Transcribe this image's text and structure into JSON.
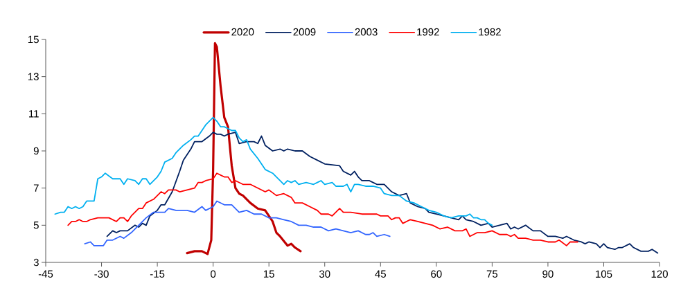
{
  "chart_data": {
    "type": "line",
    "xlim": [
      -45,
      120
    ],
    "ylim": [
      3,
      15
    ],
    "xticks": [
      -45,
      -30,
      -15,
      0,
      15,
      30,
      45,
      60,
      75,
      90,
      105,
      120
    ],
    "yticks": [
      3,
      5,
      7,
      9,
      11,
      13,
      15
    ],
    "grid": false,
    "legend": "top",
    "marker": "none",
    "line_style": "solid",
    "series": [
      {
        "name": "2020",
        "color": "#c00000",
        "x": [
          -7,
          -5,
          -3,
          -1.5,
          -0.5,
          0,
          0.5,
          1,
          2,
          3,
          4,
          5,
          6,
          7,
          8,
          10,
          12,
          14,
          15,
          16,
          17,
          18,
          20,
          21,
          22,
          23.5
        ],
        "values": [
          3.5,
          3.6,
          3.6,
          3.45,
          4.2,
          8,
          14.8,
          14.6,
          12.5,
          10.8,
          10.3,
          8.2,
          7.0,
          6.7,
          6.6,
          6.2,
          5.9,
          5.8,
          5.5,
          5.2,
          4.6,
          4.4,
          3.9,
          4.0,
          3.8,
          3.6
        ]
      },
      {
        "name": "2009",
        "color": "#002060",
        "x": [
          -28.5,
          -27,
          -26,
          -25,
          -23,
          -21,
          -20,
          -19,
          -18,
          -17,
          -15,
          -14,
          -13,
          -11,
          -9,
          -8,
          -6,
          -5,
          -3,
          -1,
          0,
          1,
          2,
          3,
          4,
          6,
          7,
          9,
          11,
          12,
          13,
          14,
          16,
          18,
          19,
          20,
          22,
          24,
          26,
          28,
          30,
          34,
          35,
          36,
          37,
          38,
          39,
          40,
          42,
          43,
          44,
          46,
          48,
          50,
          52,
          53,
          55,
          57,
          58,
          60,
          62,
          64,
          66,
          67,
          68,
          70,
          72,
          74,
          75,
          77,
          79,
          80,
          81,
          82,
          84,
          86,
          88,
          90,
          92,
          94,
          95,
          97,
          99,
          100,
          101,
          103,
          104,
          105,
          106,
          108,
          109,
          110,
          112,
          113,
          115,
          117,
          118,
          119.5
        ],
        "values": [
          4.4,
          4.7,
          4.6,
          4.7,
          4.7,
          5.0,
          4.9,
          5.1,
          5.0,
          5.5,
          5.8,
          6.1,
          6.1,
          6.8,
          7.9,
          8.5,
          9.1,
          9.5,
          9.5,
          9.8,
          10.0,
          9.9,
          9.9,
          9.8,
          9.9,
          10.0,
          9.4,
          9.5,
          9.5,
          9.4,
          9.8,
          9.3,
          9.0,
          9.1,
          9.0,
          9.1,
          9.0,
          9.0,
          8.7,
          8.5,
          8.3,
          8.2,
          7.9,
          7.8,
          7.7,
          7.9,
          7.6,
          7.4,
          7.4,
          7.3,
          7.2,
          7.2,
          6.8,
          6.6,
          6.7,
          6.2,
          6.0,
          5.9,
          5.7,
          5.6,
          5.5,
          5.4,
          5.3,
          5.5,
          5.3,
          5.2,
          5.0,
          5.1,
          4.9,
          5.0,
          5.1,
          4.8,
          4.9,
          4.8,
          5.0,
          4.7,
          4.7,
          4.4,
          4.4,
          4.3,
          4.4,
          4.2,
          4.1,
          4.0,
          4.1,
          4.0,
          3.8,
          4.0,
          3.8,
          3.7,
          3.8,
          3.8,
          4.0,
          3.8,
          3.6,
          3.6,
          3.7,
          3.5
        ]
      },
      {
        "name": "2003",
        "color": "#3366ff",
        "x": [
          -34.5,
          -33,
          -32,
          -29.5,
          -28.5,
          -27,
          -25,
          -24,
          -22,
          -20,
          -18,
          -16,
          -13,
          -12,
          -10,
          -7,
          -5,
          -3,
          -2,
          0,
          1,
          3,
          5,
          7,
          9,
          11,
          13,
          15,
          17,
          19,
          21,
          23,
          25,
          27,
          29,
          31,
          33,
          35,
          37,
          39,
          41,
          42,
          43,
          44,
          46,
          47.5
        ],
        "values": [
          4.0,
          4.1,
          3.9,
          3.9,
          4.2,
          4.2,
          4.4,
          4.3,
          4.6,
          5.0,
          5.4,
          5.7,
          5.7,
          5.9,
          5.8,
          5.8,
          5.7,
          6.0,
          5.8,
          6.0,
          6.3,
          6.1,
          6.1,
          5.7,
          5.8,
          5.6,
          5.6,
          5.4,
          5.4,
          5.3,
          5.2,
          5.0,
          5.0,
          4.9,
          4.9,
          4.7,
          4.8,
          4.7,
          4.6,
          4.7,
          4.5,
          4.5,
          4.6,
          4.4,
          4.5,
          4.4
        ]
      },
      {
        "name": "1992",
        "color": "#ff0000",
        "x": [
          -39,
          -38,
          -37,
          -36,
          -35,
          -34,
          -33,
          -31,
          -28,
          -26,
          -25,
          -24,
          -23,
          -22,
          -20,
          -19,
          -18,
          -16,
          -14,
          -13,
          -12,
          -10,
          -9,
          -7,
          -5,
          -4,
          -3,
          -2,
          0,
          1,
          3,
          4,
          5,
          6,
          8,
          10,
          12,
          14,
          15,
          17,
          19,
          21,
          22,
          24,
          26,
          28,
          29,
          31,
          32,
          34,
          35,
          37,
          40,
          42,
          44,
          45,
          46,
          47,
          48,
          49,
          50,
          51,
          53,
          55,
          57,
          59,
          61,
          63,
          65,
          67,
          68,
          69,
          71,
          73,
          75,
          77,
          79,
          80,
          81,
          82,
          84,
          86,
          88,
          90,
          92,
          93,
          95,
          96,
          98
        ],
        "values": [
          5.0,
          5.2,
          5.2,
          5.3,
          5.2,
          5.2,
          5.3,
          5.4,
          5.4,
          5.2,
          5.4,
          5.4,
          5.2,
          5.5,
          5.9,
          5.9,
          6.2,
          6.4,
          6.8,
          6.7,
          6.9,
          6.9,
          6.8,
          6.9,
          7.0,
          7.3,
          7.3,
          7.4,
          7.5,
          7.8,
          7.6,
          7.6,
          7.3,
          7.4,
          7.2,
          7.2,
          7.0,
          6.8,
          6.9,
          6.6,
          6.7,
          6.5,
          6.2,
          6.2,
          6.0,
          5.8,
          5.6,
          5.6,
          5.5,
          5.9,
          5.7,
          5.7,
          5.6,
          5.6,
          5.6,
          5.5,
          5.5,
          5.5,
          5.3,
          5.4,
          5.4,
          5.1,
          5.3,
          5.2,
          5.1,
          5.0,
          4.8,
          4.9,
          4.7,
          4.7,
          4.8,
          4.4,
          4.6,
          4.6,
          4.7,
          4.5,
          4.5,
          4.4,
          4.5,
          4.3,
          4.3,
          4.2,
          4.2,
          4.1,
          4.1,
          4.2,
          3.9,
          4.1,
          4.1
        ]
      },
      {
        "name": "1982",
        "color": "#00b0f0",
        "x": [
          -42.5,
          -41,
          -40,
          -39,
          -38,
          -37,
          -36,
          -35,
          -34,
          -32,
          -31,
          -30,
          -29,
          -27,
          -25,
          -24,
          -23,
          -21,
          -20,
          -19,
          -18,
          -17,
          -15,
          -14,
          -13,
          -11,
          -10,
          -8,
          -6,
          -5,
          -4,
          -2,
          0,
          1,
          2,
          3,
          5,
          6,
          7,
          8,
          9,
          10,
          12,
          14,
          16,
          18,
          19,
          20,
          21,
          22,
          23,
          25,
          27,
          28,
          29,
          30,
          32,
          33,
          35,
          36,
          37,
          38,
          39,
          41,
          43,
          45,
          46,
          48,
          50,
          52,
          54,
          56,
          58,
          60,
          62,
          64,
          66,
          68,
          69,
          70,
          71,
          72,
          73,
          74,
          75
        ],
        "values": [
          5.6,
          5.7,
          5.7,
          6.0,
          5.9,
          6.0,
          5.9,
          6.0,
          6.3,
          6.3,
          7.5,
          7.6,
          7.8,
          7.5,
          7.5,
          7.2,
          7.5,
          7.4,
          7.2,
          7.5,
          7.5,
          7.2,
          7.6,
          7.9,
          8.4,
          8.6,
          8.9,
          9.3,
          9.6,
          9.8,
          9.8,
          10.4,
          10.8,
          10.6,
          10.3,
          10.3,
          10.1,
          10.1,
          9.7,
          9.5,
          9.6,
          9.1,
          8.6,
          8.0,
          7.8,
          7.4,
          7.2,
          7.4,
          7.3,
          7.4,
          7.2,
          7.3,
          7.2,
          7.3,
          7.4,
          7.2,
          7.3,
          7.1,
          7.1,
          7.2,
          6.8,
          7.2,
          7.2,
          7.1,
          7.1,
          7.0,
          6.7,
          6.6,
          6.6,
          6.3,
          6.2,
          6.0,
          5.8,
          5.7,
          5.5,
          5.4,
          5.5,
          5.5,
          5.6,
          5.4,
          5.4,
          5.3,
          5.3,
          5.1,
          5.0
        ]
      }
    ]
  }
}
